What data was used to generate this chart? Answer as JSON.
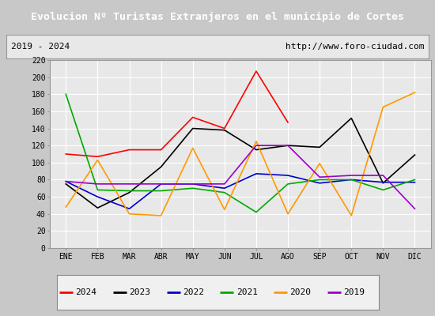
{
  "title": "Evolucion Nº Turistas Extranjeros en el municipio de Cortes",
  "subtitle_left": "2019 - 2024",
  "subtitle_right": "http://www.foro-ciudad.com",
  "months": [
    "ENE",
    "FEB",
    "MAR",
    "ABR",
    "MAY",
    "JUN",
    "JUL",
    "AGO",
    "SEP",
    "OCT",
    "NOV",
    "DIC"
  ],
  "ylim": [
    0,
    220
  ],
  "yticks": [
    0,
    20,
    40,
    60,
    80,
    100,
    120,
    140,
    160,
    180,
    200,
    220
  ],
  "series": {
    "2024": {
      "color": "#ff0000",
      "values": [
        110,
        107,
        115,
        115,
        153,
        140,
        207,
        147,
        null,
        null,
        null,
        null
      ]
    },
    "2023": {
      "color": "#000000",
      "values": [
        75,
        47,
        65,
        95,
        140,
        138,
        115,
        120,
        118,
        152,
        76,
        109
      ]
    },
    "2022": {
      "color": "#0000cc",
      "values": [
        78,
        60,
        46,
        75,
        75,
        70,
        87,
        85,
        76,
        80,
        77,
        77
      ]
    },
    "2021": {
      "color": "#00aa00",
      "values": [
        180,
        68,
        67,
        67,
        70,
        65,
        42,
        75,
        80,
        80,
        68,
        80
      ]
    },
    "2020": {
      "color": "#ff9900",
      "values": [
        48,
        103,
        40,
        38,
        117,
        45,
        125,
        40,
        99,
        38,
        165,
        182
      ]
    },
    "2019": {
      "color": "#9900cc",
      "values": [
        78,
        75,
        75,
        75,
        75,
        75,
        120,
        120,
        83,
        85,
        85,
        46
      ]
    }
  },
  "title_bgcolor": "#4d7ebf",
  "title_color": "#ffffff",
  "fig_bgcolor": "#c8c8c8",
  "plot_bgcolor": "#e8e8e8",
  "sub_bgcolor": "#e8e8e8",
  "grid_color": "#ffffff",
  "border_color": "#999999"
}
